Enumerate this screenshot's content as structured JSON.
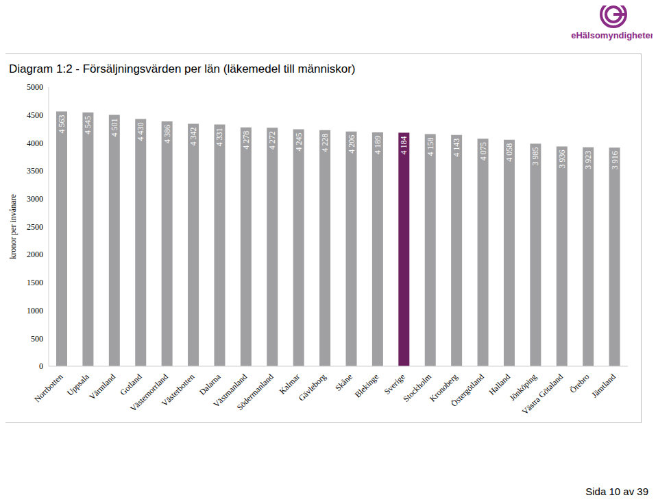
{
  "header": {
    "logo": "eHälsomyndigheten"
  },
  "footer": "Sida 10 av 39",
  "chart_data": {
    "type": "bar",
    "title": "Diagram 1:2 - Försäljningsvärden per län (läkemedel till människor)",
    "y_label": "kronor per invånare",
    "categories": [
      "Norrbotten",
      "Uppsala",
      "Värmland",
      "Gotland",
      "Västernorrland",
      "Västerbotten",
      "Dalarna",
      "Västmanland",
      "Södermanland",
      "Kalmar",
      "Gävleborg",
      "Skåne",
      "Blekinge",
      "Sverige",
      "Stockholm",
      "Kronoberg",
      "Östergötland",
      "Halland",
      "Jönköping",
      "Västra Götaland",
      "Örebro",
      "Jämtland"
    ],
    "values": [
      4563,
      4545,
      4501,
      4430,
      4386,
      4342,
      4331,
      4278,
      4272,
      4245,
      4228,
      4206,
      4189,
      4184,
      4158,
      4143,
      4075,
      4058,
      3985,
      3936,
      3923,
      3916
    ],
    "value_labels": [
      "4 563",
      "4 545",
      "4 501",
      "4 430",
      "4 386",
      "4 342",
      "4 331",
      "4 278",
      "4 272",
      "4 245",
      "4 228",
      "4 206",
      "4 189",
      "4 184",
      "4 158",
      "4 143",
      "4 075",
      "4 058",
      "3 985",
      "3 936",
      "3 923",
      "3 916"
    ],
    "colors": [
      "#a0a0a2",
      "#a0a0a2",
      "#a0a0a2",
      "#a0a0a2",
      "#a0a0a2",
      "#a0a0a2",
      "#a0a0a2",
      "#a0a0a2",
      "#a0a0a2",
      "#a0a0a2",
      "#a0a0a2",
      "#a0a0a2",
      "#a0a0a2",
      "#6b1f5e",
      "#a0a0a2",
      "#a0a0a2",
      "#a0a0a2",
      "#a0a0a2",
      "#a0a0a2",
      "#a0a0a2",
      "#a0a0a2",
      "#a0a0a2"
    ],
    "ylim": [
      0,
      5000
    ],
    "yticks": [
      0,
      500,
      1000,
      1500,
      2000,
      2500,
      3000,
      3500,
      4000,
      4500,
      5000
    ],
    "grid": false,
    "data_labels": true
  }
}
